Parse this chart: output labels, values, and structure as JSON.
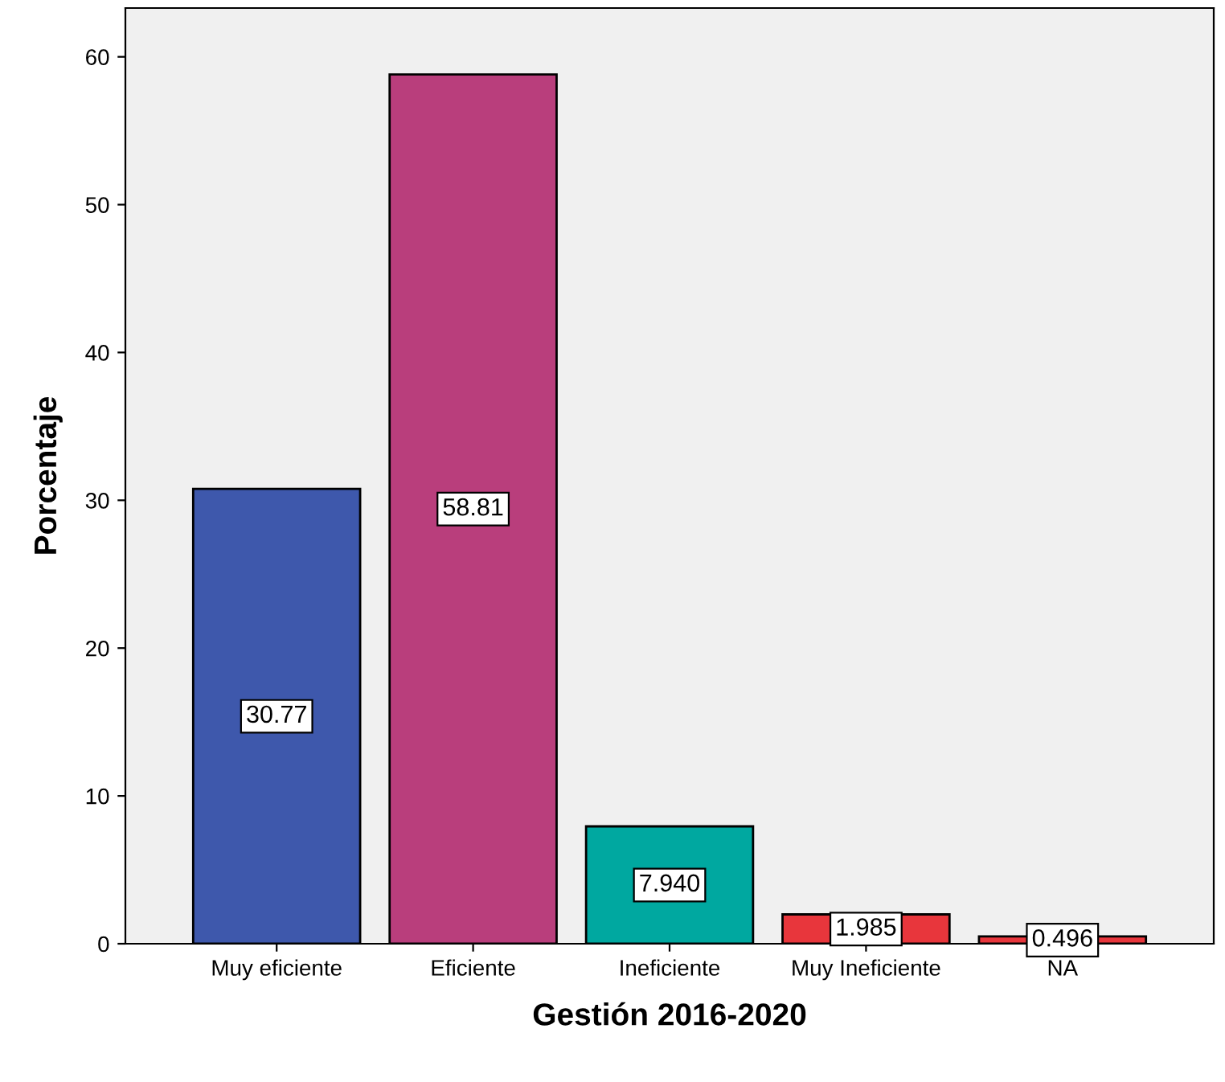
{
  "chart_data": {
    "type": "bar",
    "xlabel": "Gestión 2016-2020",
    "ylabel": "Porcentaje",
    "categories": [
      "Muy eficiente",
      "Eficiente",
      "Ineficiente",
      "Muy Ineficiente",
      "NA"
    ],
    "values": [
      30.77,
      58.81,
      7.94,
      1.985,
      0.496
    ],
    "colors": [
      "#3e58ac",
      "#b93e7c",
      "#00a8a0",
      "#e8363c",
      "#e8363c"
    ],
    "value_labels": [
      "30.77",
      "58.81",
      "7.940",
      "1.985",
      "0.496"
    ],
    "ylim": [
      0,
      63.3
    ],
    "yticks": [
      0,
      10,
      20,
      30,
      40,
      50,
      60
    ],
    "grid": false,
    "legend": false
  }
}
